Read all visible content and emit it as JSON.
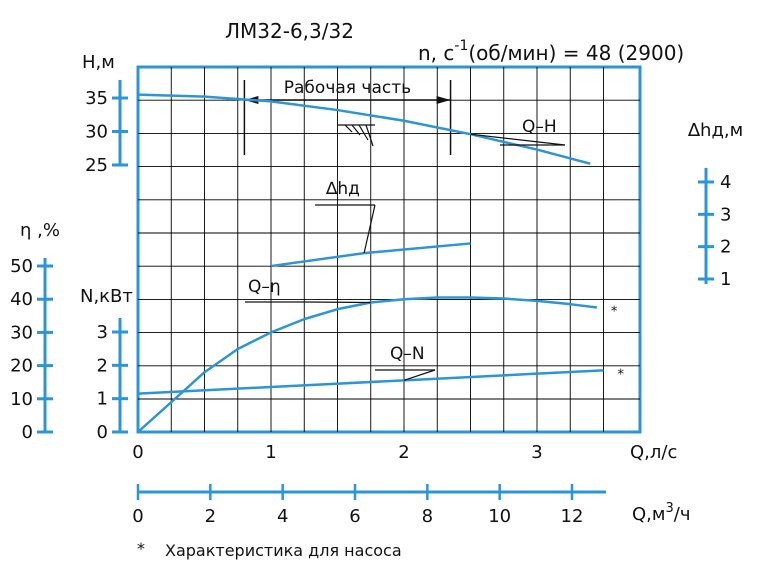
{
  "title": "ЛМ32-6,3/32",
  "speed_label": "n, c",
  "speed_exp": "-1",
  "speed_rest": "(об/мин) = 48 (2900)",
  "working_zone_label": "Рабочая часть",
  "footnote_mark": "*",
  "footnote_text": "Характеристика для насоса",
  "colors": {
    "curve": "#2b95d6",
    "axis": "#2b95d6",
    "grid": "#000000",
    "text": "#111111"
  },
  "chart_data": {
    "type": "line",
    "x": {
      "label": "Q,л/с",
      "range": [
        0,
        4
      ],
      "ticks": [
        "0",
        "1",
        "2",
        "3"
      ]
    },
    "x2": {
      "label_pre": "Q,м",
      "label_sup": "3",
      "label_post": "/ч",
      "range": [
        0,
        14.4
      ],
      "ticks": [
        "0",
        "2",
        "4",
        "6",
        "8",
        "10",
        "12"
      ]
    },
    "grid": true,
    "axes": {
      "H": {
        "label": "H,м",
        "range": [
          25,
          35
        ],
        "ticks": [
          "35",
          "30",
          "25"
        ]
      },
      "eta": {
        "label": "η ,%",
        "range": [
          0,
          50
        ],
        "ticks": [
          "50",
          "40",
          "30",
          "20",
          "10",
          "0"
        ]
      },
      "N": {
        "label": "N,кВт",
        "range": [
          0,
          3
        ],
        "ticks": [
          "3",
          "2",
          "1",
          "0"
        ]
      },
      "dh": {
        "label": "∆hд,м",
        "range": [
          1,
          4
        ],
        "ticks": [
          "4",
          "3",
          "2",
          "1"
        ]
      }
    },
    "series": [
      {
        "name": "Q–H",
        "axis": "H",
        "marker": "",
        "points": [
          [
            0,
            35.5
          ],
          [
            0.5,
            35.2
          ],
          [
            1,
            34.5
          ],
          [
            1.5,
            33.2
          ],
          [
            2,
            31.6
          ],
          [
            2.5,
            29.6
          ],
          [
            3,
            27.3
          ],
          [
            3.4,
            25.2
          ]
        ]
      },
      {
        "name": "∆hд",
        "axis": "dh",
        "marker": "",
        "points": [
          [
            1,
            1.4
          ],
          [
            1.7,
            1.8
          ],
          [
            2.5,
            2.1
          ]
        ]
      },
      {
        "name": "Q–η",
        "axis": "eta",
        "marker": "*",
        "points": [
          [
            0,
            0
          ],
          [
            0.25,
            9
          ],
          [
            0.5,
            18
          ],
          [
            0.75,
            25
          ],
          [
            1,
            30
          ],
          [
            1.25,
            34
          ],
          [
            1.5,
            37
          ],
          [
            1.75,
            39
          ],
          [
            2,
            40
          ],
          [
            2.25,
            40.5
          ],
          [
            2.5,
            40.5
          ],
          [
            2.75,
            40.2
          ],
          [
            3,
            39.5
          ],
          [
            3.25,
            38.5
          ],
          [
            3.45,
            37.5
          ]
        ]
      },
      {
        "name": "Q–N",
        "axis": "N",
        "marker": "*",
        "points": [
          [
            0,
            1.15
          ],
          [
            1,
            1.35
          ],
          [
            2,
            1.55
          ],
          [
            3,
            1.75
          ],
          [
            3.5,
            1.85
          ]
        ]
      }
    ],
    "working_range": {
      "from": 0.8,
      "to": 2.35
    }
  }
}
